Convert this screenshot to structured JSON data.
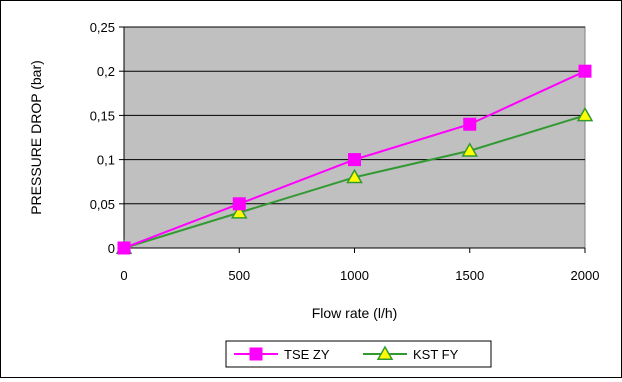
{
  "chart_data": {
    "type": "line",
    "title": "",
    "xlabel": "Flow rate (l/h)",
    "ylabel": "PRESSURE DROP (bar)",
    "x": [
      0,
      500,
      1000,
      1500,
      2000
    ],
    "x_tick_labels": [
      "0",
      "500",
      "1000",
      "1500",
      "2000"
    ],
    "y_tick_labels": [
      "0",
      "0,05",
      "0,1",
      "0,15",
      "0,2",
      "0,25"
    ],
    "y_ticks": [
      0,
      0.05,
      0.1,
      0.15,
      0.2,
      0.25
    ],
    "xlim": [
      0,
      2000
    ],
    "ylim": [
      0,
      0.25
    ],
    "grid": "horizontal",
    "legend_position": "bottom",
    "plot_background": "#c0c0c0",
    "series": [
      {
        "name": "TSE ZY",
        "values": [
          0,
          0.05,
          0.1,
          0.14,
          0.2
        ],
        "color": "#ff00ff",
        "marker": "square",
        "marker_fill": "#ff00ff"
      },
      {
        "name": "KST FY",
        "values": [
          0,
          0.04,
          0.08,
          0.11,
          0.15
        ],
        "color": "#339933",
        "marker": "triangle",
        "marker_fill": "#ffff00"
      }
    ]
  }
}
